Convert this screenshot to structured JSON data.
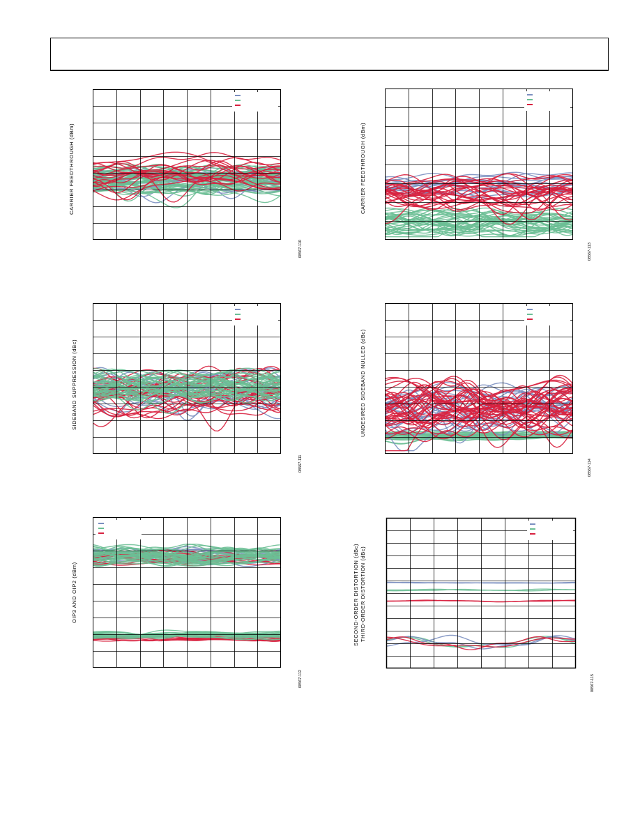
{
  "colors": {
    "blue": "#7b8fc0",
    "green": "#6bbf95",
    "red": "#d8213f",
    "grid": "#000000"
  },
  "figures": [
    {
      "id": "ccft-left",
      "ylabel": "CARRIER FEEDTHROUGH (dBm)",
      "figure_id": "08567-110",
      "legend": [
        "",
        "",
        ""
      ],
      "chart_data": {
        "type": "line",
        "grid_cols": 8,
        "grid_rows": 9,
        "bands": [
          {
            "series": "blue",
            "center": 0.6,
            "spread": 0.12,
            "wave": 0.02,
            "count": 16
          },
          {
            "series": "green",
            "center": 0.6,
            "spread": 0.14,
            "wave": 0.03,
            "count": 40
          },
          {
            "series": "red",
            "center": 0.55,
            "spread": 0.16,
            "wave": 0.05,
            "count": 18
          }
        ]
      }
    },
    {
      "id": "ccft-right",
      "ylabel": "CARRIER FEEDTHROUGH (dBm)",
      "figure_id": "08567-113",
      "legend": [
        "",
        "",
        ""
      ],
      "chart_data": {
        "type": "line",
        "grid_cols": 8,
        "grid_rows": 8,
        "bands": [
          {
            "series": "blue",
            "center": 0.64,
            "spread": 0.1,
            "wave": 0.03,
            "count": 14
          },
          {
            "series": "green",
            "center": 0.88,
            "spread": 0.1,
            "wave": 0.04,
            "count": 36
          },
          {
            "series": "red",
            "center": 0.68,
            "spread": 0.12,
            "wave": 0.05,
            "count": 26
          }
        ]
      }
    },
    {
      "id": "sb-left",
      "ylabel": "SIDEBAND SUPPRESSION (dBc)",
      "figure_id": "08567-111",
      "legend": [
        "",
        "",
        ""
      ],
      "chart_data": {
        "type": "line",
        "grid_cols": 8,
        "grid_rows": 9,
        "bands": [
          {
            "series": "blue",
            "center": 0.58,
            "spread": 0.16,
            "wave": 0.06,
            "count": 22
          },
          {
            "series": "red",
            "center": 0.6,
            "spread": 0.18,
            "wave": 0.07,
            "count": 24
          },
          {
            "series": "green",
            "center": 0.55,
            "spread": 0.12,
            "wave": 0.05,
            "count": 36
          }
        ]
      }
    },
    {
      "id": "sb-right",
      "ylabel": "UNDESIRED SIDEBAND NULLED (dBc)",
      "figure_id": "08567-114",
      "legend": [
        "",
        "",
        ""
      ],
      "chart_data": {
        "type": "line",
        "grid_cols": 8,
        "grid_rows": 9,
        "bands": [
          {
            "series": "green",
            "center": 0.88,
            "spread": 0.04,
            "wave": 0.01,
            "count": 22
          },
          {
            "series": "blue",
            "center": 0.7,
            "spread": 0.18,
            "wave": 0.08,
            "count": 22
          },
          {
            "series": "red",
            "center": 0.7,
            "spread": 0.2,
            "wave": 0.09,
            "count": 40
          }
        ]
      }
    },
    {
      "id": "oip-left",
      "ylabel": "OIP3 AND OIP2 (dBm)",
      "figure_id": "08567-112",
      "legend": [
        "",
        "",
        ""
      ],
      "chart_data": {
        "type": "line",
        "grid_cols": 8,
        "grid_rows": 9,
        "bands": [
          {
            "series": "blue",
            "center": 0.25,
            "spread": 0.06,
            "wave": 0.02,
            "count": 12
          },
          {
            "series": "red",
            "center": 0.27,
            "spread": 0.06,
            "wave": 0.02,
            "count": 14
          },
          {
            "series": "green",
            "center": 0.25,
            "spread": 0.08,
            "wave": 0.03,
            "count": 30
          },
          {
            "series": "red",
            "center": 0.8,
            "spread": 0.02,
            "wave": 0.01,
            "count": 8
          },
          {
            "series": "green",
            "center": 0.78,
            "spread": 0.04,
            "wave": 0.01,
            "count": 20
          }
        ]
      }
    },
    {
      "id": "dist-right",
      "ylabel": "SECOND-ORDER DISTORTION (dBc)",
      "ylabel2": "THIRD-ORDER DISTORTION (dBc)",
      "figure_id": "08567-115",
      "legend": [
        "",
        "",
        ""
      ],
      "chart_data": {
        "type": "line",
        "grid_cols": 8,
        "grid_rows": 12,
        "bands": [
          {
            "series": "blue",
            "center": 0.43,
            "spread": 0.004,
            "wave": 0.002,
            "count": 2
          },
          {
            "series": "green",
            "center": 0.48,
            "spread": 0.006,
            "wave": 0.004,
            "count": 2
          },
          {
            "series": "red",
            "center": 0.55,
            "spread": 0.006,
            "wave": 0.004,
            "count": 2
          },
          {
            "series": "green",
            "center": 0.82,
            "spread": 0.02,
            "wave": 0.03,
            "count": 2
          },
          {
            "series": "blue",
            "center": 0.82,
            "spread": 0.02,
            "wave": 0.03,
            "count": 2
          },
          {
            "series": "red",
            "center": 0.83,
            "spread": 0.02,
            "wave": 0.03,
            "count": 2
          }
        ]
      }
    }
  ]
}
